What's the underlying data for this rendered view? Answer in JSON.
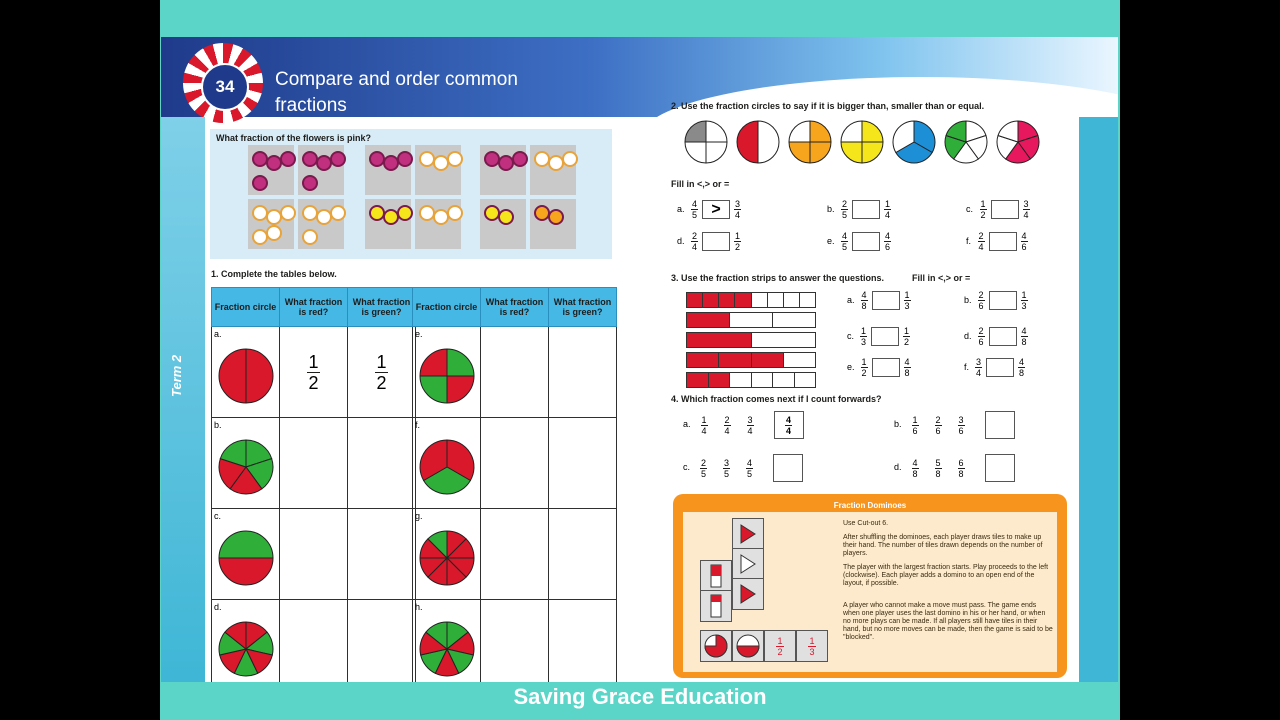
{
  "header": {
    "lesson_number": "34",
    "title_line1": "Compare and order common",
    "title_line2": "fractions",
    "term_label": "Term 2"
  },
  "flowers": {
    "question": "What fraction of the flowers is pink?"
  },
  "q1": {
    "heading": "1.  Complete the tables below.",
    "headers": [
      "Fraction circle",
      "What fraction is red?",
      "What fraction is green?"
    ],
    "row_labels_left": [
      "a.",
      "b.",
      "c.",
      "d."
    ],
    "row_labels_right": [
      "e.",
      "f.",
      "g.",
      "h."
    ],
    "answer_a_red_n": "1",
    "answer_a_red_d": "2",
    "answer_a_green_n": "1",
    "answer_a_green_d": "2"
  },
  "q2": {
    "heading": "2.  Use the fraction circles to say if it is bigger than, smaller than or equal.",
    "fill_in": "Fill in <,> or =",
    "items": [
      {
        "label": "a.",
        "l_n": "4",
        "l_d": "5",
        "answer": ">",
        "r_n": "3",
        "r_d": "4"
      },
      {
        "label": "b.",
        "l_n": "2",
        "l_d": "5",
        "answer": "",
        "r_n": "1",
        "r_d": "4"
      },
      {
        "label": "c.",
        "l_n": "1",
        "l_d": "2",
        "answer": "",
        "r_n": "3",
        "r_d": "4"
      },
      {
        "label": "d.",
        "l_n": "2",
        "l_d": "4",
        "answer": "",
        "r_n": "1",
        "r_d": "2"
      },
      {
        "label": "e.",
        "l_n": "4",
        "l_d": "5",
        "answer": "",
        "r_n": "4",
        "r_d": "6"
      },
      {
        "label": "f.",
        "l_n": "2",
        "l_d": "4",
        "answer": "",
        "r_n": "4",
        "r_d": "6"
      }
    ]
  },
  "q3": {
    "heading": "3.  Use the fraction strips to answer the questions.",
    "fill_in": "Fill in <,> or =",
    "items": [
      {
        "label": "a.",
        "l_n": "4",
        "l_d": "8",
        "r_n": "1",
        "r_d": "3"
      },
      {
        "label": "b.",
        "l_n": "2",
        "l_d": "6",
        "r_n": "1",
        "r_d": "3"
      },
      {
        "label": "c.",
        "l_n": "1",
        "l_d": "3",
        "r_n": "1",
        "r_d": "2"
      },
      {
        "label": "d.",
        "l_n": "2",
        "l_d": "6",
        "r_n": "4",
        "r_d": "8"
      },
      {
        "label": "e.",
        "l_n": "1",
        "l_d": "2",
        "r_n": "4",
        "r_d": "8"
      },
      {
        "label": "f.",
        "l_n": "3",
        "l_d": "4",
        "r_n": "4",
        "r_d": "8"
      }
    ],
    "strips": [
      {
        "parts": 8,
        "filled": 4
      },
      {
        "parts": 3,
        "filled": 1
      },
      {
        "parts": 2,
        "filled": 1
      },
      {
        "parts": 4,
        "filled": 3
      },
      {
        "parts": 6,
        "filled": 2
      }
    ]
  },
  "q4": {
    "heading": "4.  Which fraction comes next if I count forwards?",
    "rows": [
      {
        "label": "a.",
        "fracs": [
          [
            "1",
            "4"
          ],
          [
            "2",
            "4"
          ],
          [
            "3",
            "4"
          ]
        ],
        "answer_n": "4",
        "answer_d": "4"
      },
      {
        "label": "b.",
        "fracs": [
          [
            "1",
            "6"
          ],
          [
            "2",
            "6"
          ],
          [
            "3",
            "6"
          ]
        ],
        "answer_n": "",
        "answer_d": ""
      },
      {
        "label": "c.",
        "fracs": [
          [
            "2",
            "5"
          ],
          [
            "3",
            "5"
          ],
          [
            "4",
            "5"
          ]
        ],
        "answer_n": "",
        "answer_d": ""
      },
      {
        "label": "d.",
        "fracs": [
          [
            "4",
            "8"
          ],
          [
            "5",
            "8"
          ],
          [
            "6",
            "8"
          ]
        ],
        "answer_n": "",
        "answer_d": ""
      }
    ]
  },
  "dominoes": {
    "title": "Fraction Dominoes",
    "rules": [
      "Use Cut-out 6.",
      "After shuffling the dominoes, each player draws tiles to make up their hand. The number of tiles drawn depends on the number of players.",
      "The player with the largest fraction starts. Play proceeds to the left (clockwise). Each player adds a domino to an open end of the layout, if possible.",
      "A player who cannot make a move must pass. The game ends when one player uses the last domino in his or her hand, or when no more plays can be made. If all players still have tiles in their hand, but no more moves can be made, then the game is said to be \"blocked\"."
    ],
    "tile_half_n": "1",
    "tile_half_d": "2",
    "tile_third_n": "1",
    "tile_third_d": "3"
  },
  "footer": {
    "text": "Saving Grace Education"
  },
  "colors": {
    "red": "#d9182b",
    "green": "#2fae3a",
    "yellow": "#f5e51b",
    "orange": "#f7a51d",
    "blue": "#1d8fd6",
    "grey": "#8a8a8a",
    "pink": "#e8185e",
    "header_blue": "#45b8e6",
    "frame_teal": "#5cd5c9"
  }
}
